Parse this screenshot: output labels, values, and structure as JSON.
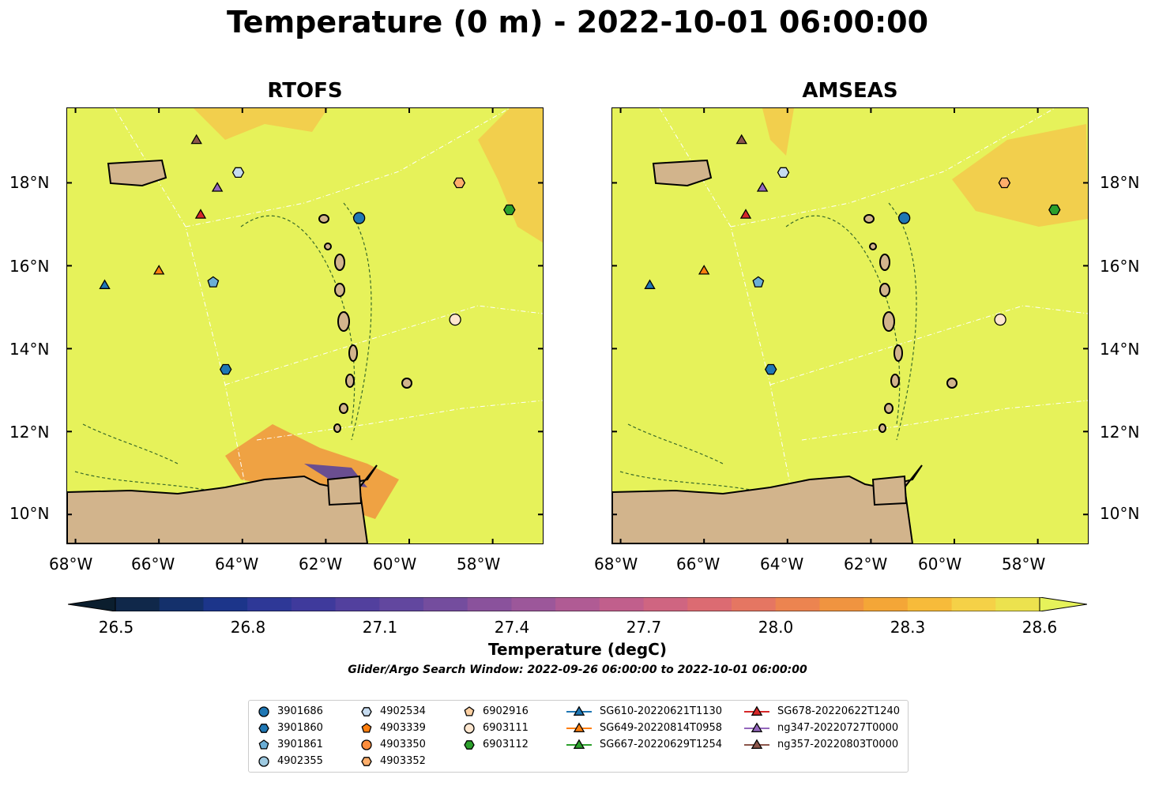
{
  "title": "Temperature (0 m) - 2022-10-01 06:00:00",
  "panels": [
    {
      "title": "RTOFS"
    },
    {
      "title": "AMSEAS"
    }
  ],
  "lon_ticks": [
    "68°W",
    "66°W",
    "64°W",
    "62°W",
    "60°W",
    "58°W"
  ],
  "lat_ticks": [
    "18°N",
    "16°N",
    "14°N",
    "12°N",
    "10°N"
  ],
  "colorbar": {
    "ticks": [
      "26.5",
      "26.8",
      "27.1",
      "27.4",
      "27.7",
      "28.0",
      "28.3",
      "28.6"
    ],
    "label": "Temperature (degC)",
    "colors": [
      "#0b1e2e",
      "#10284a",
      "#14306b",
      "#1c358a",
      "#2e3897",
      "#3f3a9c",
      "#52409e",
      "#62479f",
      "#744d9e",
      "#8a529c",
      "#9c579a",
      "#b05b94",
      "#c15f8c",
      "#cf6581",
      "#dc6b72",
      "#e57662",
      "#ec8450",
      "#f09440",
      "#f4a637",
      "#f7bb3a",
      "#f5d147",
      "#ece24e",
      "#e6f25a"
    ]
  },
  "search_window": "Glider/Argo Search Window: 2022-09-26 06:00:00 to 2022-10-01 06:00:00",
  "legend": [
    {
      "label": "3901686",
      "marker": "circle",
      "color": "#1f77b4"
    },
    {
      "label": "3901860",
      "marker": "hexagon",
      "color": "#1f77b4"
    },
    {
      "label": "3901861",
      "marker": "pentagon",
      "color": "#6baed6"
    },
    {
      "label": "4902355",
      "marker": "circle",
      "color": "#9ecae1"
    },
    {
      "label": "4902534",
      "marker": "hexagon",
      "color": "#c6dbef"
    },
    {
      "label": "4903339",
      "marker": "pentagon",
      "color": "#ff7f0e"
    },
    {
      "label": "4903350",
      "marker": "circle",
      "color": "#fd8d3c"
    },
    {
      "label": "4903352",
      "marker": "hexagon",
      "color": "#fdae6b"
    },
    {
      "label": "6902916",
      "marker": "pentagon",
      "color": "#fdd0a2"
    },
    {
      "label": "6903111",
      "marker": "circle",
      "color": "#fee6ce"
    },
    {
      "label": "6903112",
      "marker": "hexagon",
      "color": "#2ca02c"
    },
    {
      "label": "SG610-20220621T1130",
      "marker": "triangle-line",
      "color": "#1f77b4"
    },
    {
      "label": "SG649-20220814T0958",
      "marker": "triangle-line",
      "color": "#ff7f0e"
    },
    {
      "label": "SG667-20220629T1254",
      "marker": "triangle-line",
      "color": "#2ca02c"
    },
    {
      "label": "SG678-20220622T1240",
      "marker": "triangle-line",
      "color": "#d62728"
    },
    {
      "label": "ng347-20220727T0000",
      "marker": "triangle-line",
      "color": "#9467bd"
    },
    {
      "label": "ng357-20220803T0000",
      "marker": "triangle-line",
      "color": "#8c564b"
    }
  ],
  "map_extent": {
    "lon": [
      -68.2,
      -56.8
    ],
    "lat": [
      9.3,
      19.8
    ]
  },
  "observations": [
    {
      "id": "3901686",
      "lon": -61.2,
      "lat": 17.15
    },
    {
      "id": "3901860",
      "lon": -64.4,
      "lat": 13.5
    },
    {
      "id": "3901861",
      "lon": -64.7,
      "lat": 15.6
    },
    {
      "id": "4902534",
      "lon": -64.1,
      "lat": 18.25
    },
    {
      "id": "4903352",
      "lon": -58.8,
      "lat": 18.0
    },
    {
      "id": "6903111",
      "lon": -58.9,
      "lat": 14.7
    },
    {
      "id": "6903112",
      "lon": -57.6,
      "lat": 17.35
    },
    {
      "id": "SG610-20220621T1130",
      "lon": -67.3,
      "lat": 15.55
    },
    {
      "id": "SG649-20220814T0958",
      "lon": -66.0,
      "lat": 15.9
    },
    {
      "id": "SG678-20220622T1240",
      "lon": -65.0,
      "lat": 17.25
    },
    {
      "id": "ng347-20220727T0000",
      "lon": -64.6,
      "lat": 17.9
    },
    {
      "id": "ng357-20220803T0000",
      "lon": -65.1,
      "lat": 19.05
    }
  ],
  "colors": {
    "land": "#d2b48c",
    "ocean_warm": "#e6f25a",
    "ocean_patch": "#f5c64a",
    "contour": "#3a6b2a",
    "boundary": "#ffffff"
  }
}
